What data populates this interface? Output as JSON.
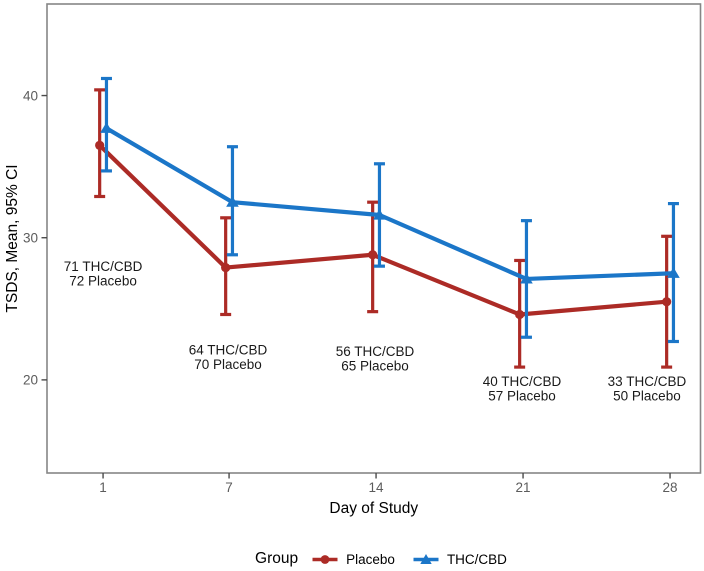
{
  "chart_data": {
    "type": "line",
    "title": "",
    "xlabel": "Day of Study",
    "ylabel": "TSDS, Mean, 95% CI",
    "x": [
      1,
      7,
      14,
      21,
      28
    ],
    "xticks": [
      "1",
      "7",
      "14",
      "21",
      "28"
    ],
    "yticks": [
      "20",
      "30",
      "40"
    ],
    "ytick_values": [
      20,
      30,
      40
    ],
    "xlim": [
      -1.67,
      29.45
    ],
    "ylim": [
      13.45,
      46.44
    ],
    "grid": false,
    "series": [
      {
        "name": "Placebo",
        "color": "#AC2B26",
        "marker": "circle",
        "means": [
          36.5,
          27.9,
          28.8,
          24.6,
          25.5
        ],
        "ci_low": [
          32.9,
          24.6,
          24.8,
          20.9,
          20.9
        ],
        "ci_high": [
          40.4,
          31.4,
          32.5,
          28.4,
          30.1
        ]
      },
      {
        "name": "THC/CBD",
        "color": "#1B76C8",
        "marker": "triangle",
        "means": [
          37.7,
          32.5,
          31.6,
          27.1,
          27.5
        ],
        "ci_low": [
          34.7,
          28.8,
          28.0,
          23.0,
          22.7
        ],
        "ci_high": [
          41.2,
          36.4,
          35.2,
          31.2,
          32.4
        ]
      }
    ],
    "annotations": [
      {
        "x": 1.0,
        "y": 28.0,
        "lines": [
          "71 THC/CBD",
          "72 Placebo"
        ]
      },
      {
        "x": 6.95,
        "y": 22.1,
        "lines": [
          "64 THC/CBD",
          "70 Placebo"
        ]
      },
      {
        "x": 13.95,
        "y": 22.0,
        "lines": [
          "56 THC/CBD",
          "65 Placebo"
        ]
      },
      {
        "x": 20.95,
        "y": 19.9,
        "lines": [
          "40 THC/CBD",
          "57 Placebo"
        ]
      },
      {
        "x": 26.9,
        "y": 19.9,
        "lines": [
          "33 THC/CBD",
          "50 Placebo"
        ]
      }
    ],
    "legend": {
      "title": "Group",
      "position": "bottom",
      "entries": [
        "Placebo",
        "THC/CBD"
      ]
    },
    "colors": {
      "panel_border": "#868686",
      "tick_mark": "#4a4a4a",
      "tick_label": "#5c5c5c",
      "axis_title": "#000000",
      "annotation_text": "#1a1a1a",
      "background": "#ffffff"
    }
  }
}
